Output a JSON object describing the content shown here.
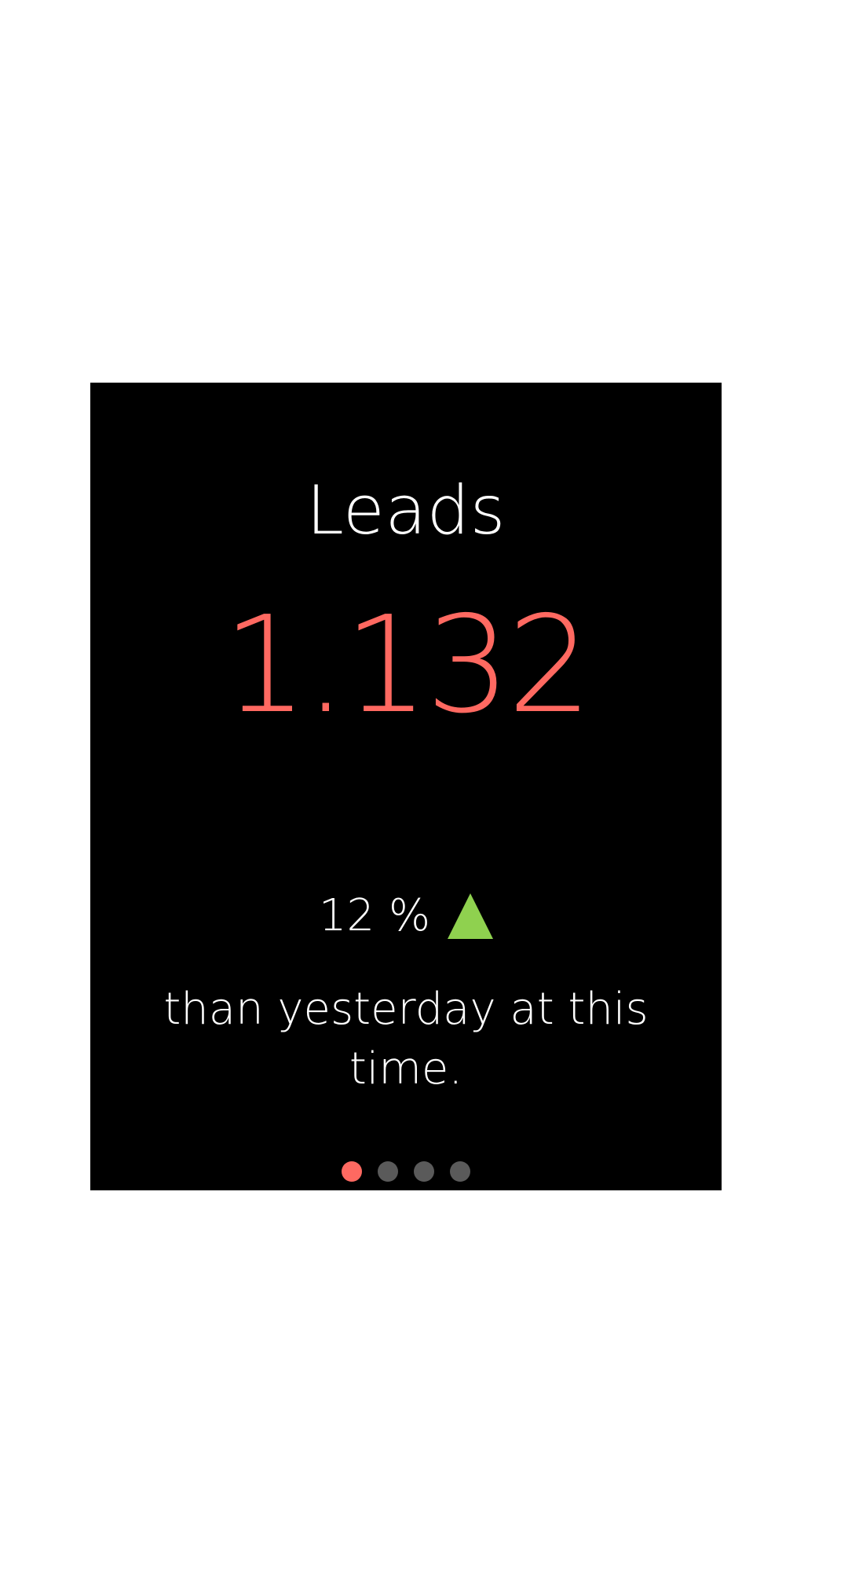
{
  "card": {
    "title": "Leads",
    "value": "1.132",
    "change": "12 %",
    "caption": "than yesterday at this time.",
    "icon": "triangle-up-icon"
  },
  "pager": {
    "total": 4,
    "active_index": 0
  },
  "colors": {
    "accent": "#ff6961",
    "up": "#8fd14f",
    "dot_inactive": "#5a5a5a",
    "background": "#000000"
  }
}
